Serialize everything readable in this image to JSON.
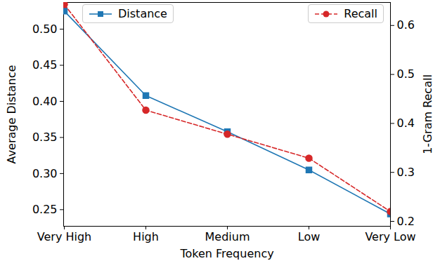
{
  "chart_data": {
    "type": "line",
    "categories": [
      "Very High",
      "High",
      "Medium",
      "Low",
      "Very Low"
    ],
    "x_label": "Token Frequency",
    "y_label": "Average Distance",
    "y2_label": "1-Gram Recall",
    "ylim": [
      0.227,
      0.537
    ],
    "yticks": [
      0.25,
      {
        "value": 0.3,
        "label": "0.30"
      },
      0.35,
      {
        "value": 0.4,
        "label": "0.40"
      },
      0.45,
      {
        "value": 0.5,
        "label": "0.50"
      }
    ],
    "y2lim": [
      0.19,
      0.647
    ],
    "y2ticks": [
      0.2,
      0.3,
      0.4,
      0.5,
      0.6
    ],
    "legend": "top",
    "grid": false,
    "series": [
      {
        "name": "Distance",
        "color": "#1f77b4",
        "marker": "square",
        "line_style": "solid",
        "values": [
          0.525,
          0.408,
          0.358,
          0.305,
          0.244
        ]
      },
      {
        "name": "Recall",
        "color": "#d62728",
        "marker": "circle",
        "line_style": "dashed",
        "axis": "y2",
        "values": [
          0.643,
          0.427,
          0.378,
          0.329,
          0.22
        ]
      }
    ]
  }
}
